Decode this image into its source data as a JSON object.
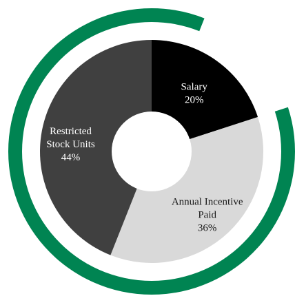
{
  "chart_data": {
    "type": "pie",
    "title": "",
    "slices": [
      {
        "label_lines": [
          "Salary"
        ],
        "value": 20,
        "value_label": "20%",
        "color": "#000000",
        "text_color": "#ffffff"
      },
      {
        "label_lines": [
          "Annual Incentive",
          "Paid"
        ],
        "value": 36,
        "value_label": "36%",
        "color": "#d9d9d9",
        "text_color": "#1a1a1a"
      },
      {
        "label_lines": [
          "Restricted",
          "Stock Units"
        ],
        "value": 44,
        "value_label": "44%",
        "color": "#404040",
        "text_color": "#ffffff"
      }
    ],
    "outer_ring": {
      "color": "#008452",
      "segments": [
        {
          "start_percent": 0,
          "end_percent": 6
        },
        {
          "start_percent": 20,
          "end_percent": 100
        }
      ]
    }
  }
}
